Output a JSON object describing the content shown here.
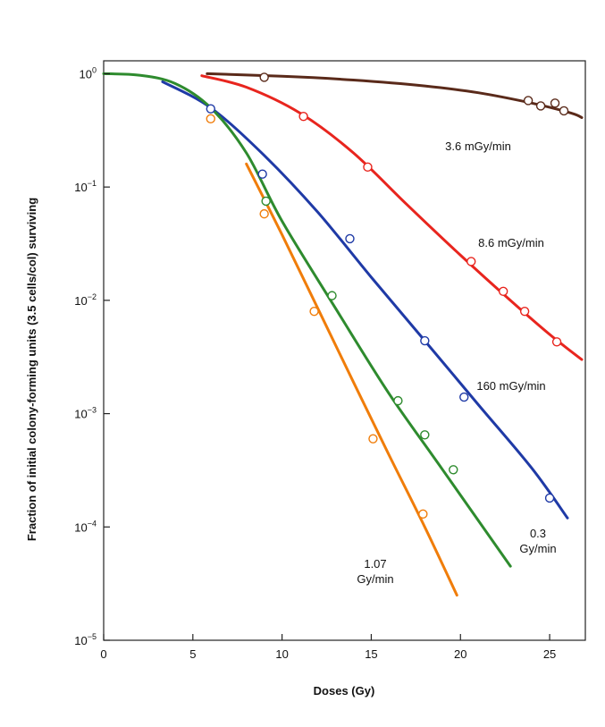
{
  "chart_data": {
    "type": "line",
    "title": "",
    "xlabel": "Doses (Gy)",
    "ylabel": "Fraction of initial colony-forming units (3.5 cells/col) surviving",
    "xlim": [
      0,
      27
    ],
    "ylim": [
      1e-05,
      1.3
    ],
    "yscale": "log",
    "grid": false,
    "x_ticks": [
      0,
      5,
      10,
      15,
      20,
      25
    ],
    "y_ticks": [
      {
        "mantissa": "10",
        "exp": "0",
        "value": 1
      },
      {
        "mantissa": "10",
        "exp": "−1",
        "value": 0.1
      },
      {
        "mantissa": "10",
        "exp": "−2",
        "value": 0.01
      },
      {
        "mantissa": "10",
        "exp": "−3",
        "value": 0.001
      },
      {
        "mantissa": "10",
        "exp": "−4",
        "value": 0.0001
      },
      {
        "mantissa": "10",
        "exp": "−5",
        "value": 1e-05
      }
    ],
    "series": [
      {
        "name": "3.6 mGy/min",
        "label_lines": [
          "3.6 mGy/min"
        ],
        "color": "#5a2a1a",
        "curve": [
          [
            5.8,
            1.0
          ],
          [
            10,
            0.95
          ],
          [
            14,
            0.88
          ],
          [
            18,
            0.78
          ],
          [
            21,
            0.68
          ],
          [
            24,
            0.55
          ],
          [
            26.2,
            0.45
          ],
          [
            26.8,
            0.41
          ]
        ],
        "points": [
          [
            9,
            0.93
          ],
          [
            23.8,
            0.58
          ],
          [
            24.5,
            0.52
          ],
          [
            25.3,
            0.55
          ],
          [
            25.8,
            0.47
          ]
        ]
      },
      {
        "name": "8.6 mGy/min",
        "label_lines": [
          "8.6 mGy/min"
        ],
        "color": "#e8251e",
        "curve": [
          [
            5.5,
            0.96
          ],
          [
            8,
            0.76
          ],
          [
            11,
            0.45
          ],
          [
            14,
            0.2
          ],
          [
            17,
            0.07
          ],
          [
            20,
            0.025
          ],
          [
            22.5,
            0.011
          ],
          [
            25,
            0.005
          ],
          [
            26.8,
            0.003
          ]
        ],
        "points": [
          [
            11.2,
            0.42
          ],
          [
            14.8,
            0.15
          ],
          [
            20.6,
            0.022
          ],
          [
            22.4,
            0.012
          ],
          [
            23.6,
            0.008
          ],
          [
            25.4,
            0.0043
          ]
        ]
      },
      {
        "name": "160 mGy/min",
        "label_lines": [
          "160 mGy/min"
        ],
        "color": "#1f3aa6",
        "curve": [
          [
            3.3,
            0.85
          ],
          [
            6,
            0.5
          ],
          [
            9,
            0.19
          ],
          [
            12,
            0.06
          ],
          [
            15,
            0.016
          ],
          [
            18,
            0.0044
          ],
          [
            21,
            0.0012
          ],
          [
            24,
            0.00033
          ],
          [
            26,
            0.00012
          ]
        ],
        "points": [
          [
            6,
            0.49
          ],
          [
            8.9,
            0.13
          ],
          [
            13.8,
            0.035
          ],
          [
            18,
            0.0044
          ],
          [
            20.2,
            0.0014
          ],
          [
            25,
            0.00018
          ]
        ]
      },
      {
        "name": "0.3 Gy/min",
        "label_lines": [
          "0.3",
          "Gy/min"
        ],
        "color": "#2e8b2e",
        "curve": [
          [
            0,
            1.0
          ],
          [
            2,
            0.97
          ],
          [
            4,
            0.82
          ],
          [
            6,
            0.5
          ],
          [
            8,
            0.2
          ],
          [
            10,
            0.05
          ],
          [
            13,
            0.0085
          ],
          [
            16,
            0.0015
          ],
          [
            19,
            0.00032
          ],
          [
            22.8,
            4.5e-05
          ]
        ],
        "points": [
          [
            9.1,
            0.075
          ],
          [
            12.8,
            0.011
          ],
          [
            16.5,
            0.0013
          ],
          [
            18,
            0.00065
          ],
          [
            19.6,
            0.00032
          ]
        ]
      },
      {
        "name": "1.07 Gy/min",
        "label_lines": [
          "1.07",
          "Gy/min"
        ],
        "color": "#f07d0a",
        "curve": [
          [
            8,
            0.16
          ],
          [
            10,
            0.038
          ],
          [
            12,
            0.0085
          ],
          [
            14,
            0.0019
          ],
          [
            16,
            0.00043
          ],
          [
            18,
            0.0001
          ],
          [
            19.8,
            2.5e-05
          ]
        ],
        "points": [
          [
            6,
            0.4
          ],
          [
            9,
            0.058
          ],
          [
            11.8,
            0.008
          ],
          [
            15.1,
            0.0006
          ],
          [
            17.9,
            0.00013
          ]
        ]
      }
    ]
  }
}
